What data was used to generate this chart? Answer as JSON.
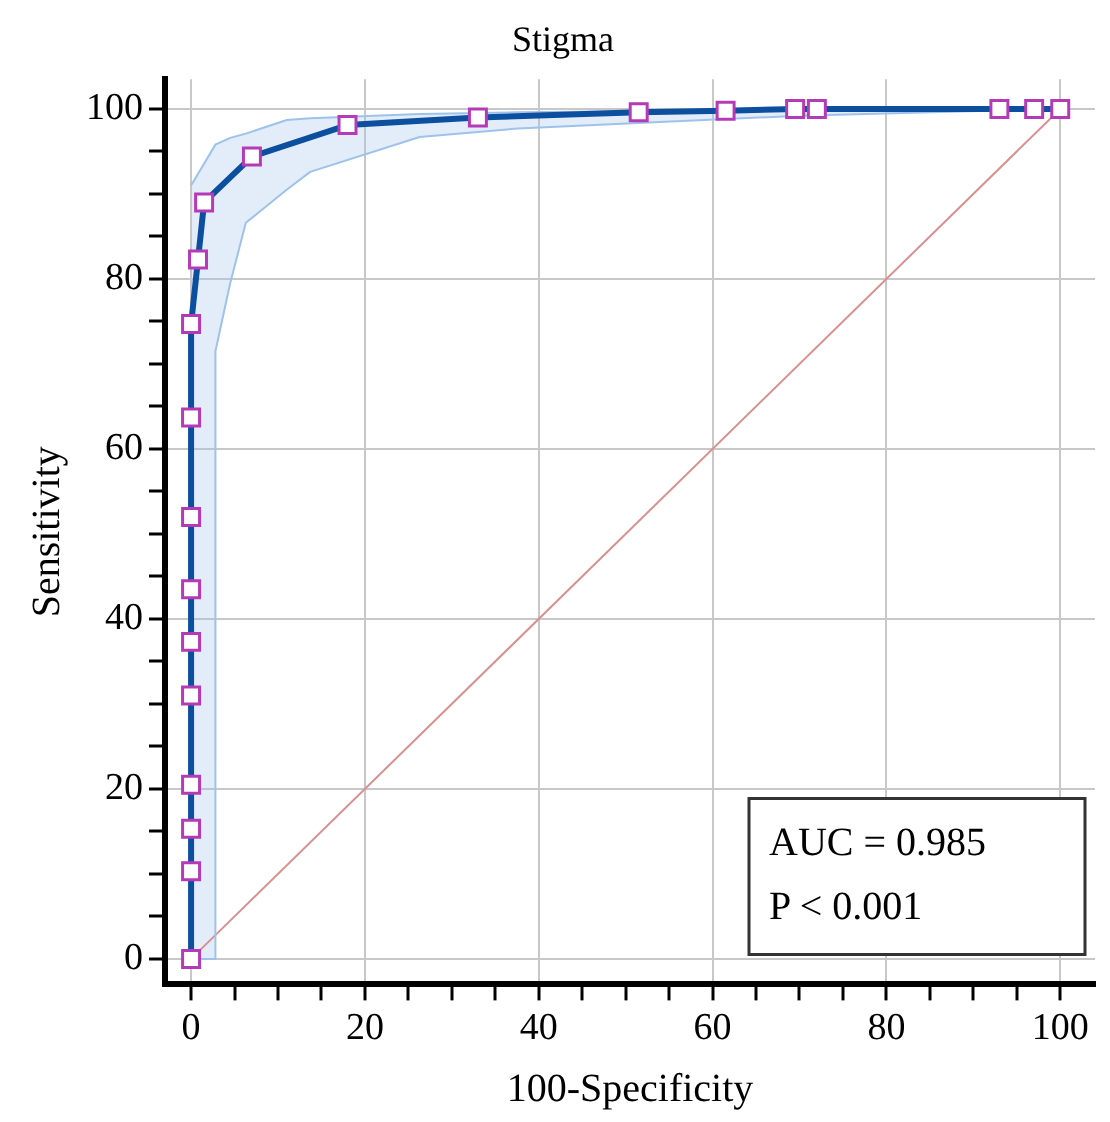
{
  "chart_data": {
    "type": "line",
    "title": "Stigma",
    "xlabel": "100-Specificity",
    "ylabel": "Sensitivity",
    "xlim": [
      -3,
      104
    ],
    "ylim": [
      -3,
      103.5
    ],
    "xticks": [
      0,
      {
        "value": 5,
        "label": null
      },
      {
        "value": 10,
        "label": null
      },
      {
        "value": 15,
        "label": null
      },
      20,
      {
        "value": 25,
        "label": null
      },
      {
        "value": 30,
        "label": null
      },
      {
        "value": 35,
        "label": null
      },
      40,
      {
        "value": 45,
        "label": null
      },
      {
        "value": 50,
        "label": null
      },
      {
        "value": 55,
        "label": null
      },
      60,
      {
        "value": 65,
        "label": null
      },
      {
        "value": 70,
        "label": null
      },
      {
        "value": 75,
        "label": null
      },
      80,
      {
        "value": 85,
        "label": null
      },
      {
        "value": 90,
        "label": null
      },
      {
        "value": 95,
        "label": null
      },
      100
    ],
    "yticks": [
      0,
      {
        "value": 5,
        "label": null
      },
      {
        "value": 10,
        "label": null
      },
      {
        "value": 15,
        "label": null
      },
      20,
      {
        "value": 25,
        "label": null
      },
      {
        "value": 30,
        "label": null
      },
      {
        "value": 35,
        "label": null
      },
      40,
      {
        "value": 45,
        "label": null
      },
      {
        "value": 50,
        "label": null
      },
      {
        "value": 55,
        "label": null
      },
      60,
      {
        "value": 65,
        "label": null
      },
      {
        "value": 70,
        "label": null
      },
      {
        "value": 75,
        "label": null
      },
      80,
      {
        "value": 85,
        "label": null
      },
      {
        "value": 90,
        "label": null
      },
      {
        "value": 95,
        "label": null
      },
      100
    ],
    "grid": true,
    "legend": false,
    "series": [
      {
        "color": "#9fc2ea",
        "x": [
          0,
          2.8,
          2.8,
          4.5,
          6.3,
          11,
          13.7,
          26.3,
          37.6,
          70,
          100
        ],
        "values": [
          91,
          95.8,
          95.8,
          96.6,
          97.1,
          98.7,
          98.9,
          99.4,
          99.6,
          99.9,
          100
        ],
        "lower": [
          0,
          0,
          71.5,
          79.5,
          86.6,
          90.5,
          92.6,
          96.7,
          97.7,
          99.2,
          100
        ],
        "upper": [
          91,
          95.8,
          95.8,
          96.6,
          97.1,
          98.7,
          98.9,
          99.4,
          99.6,
          99.9,
          100
        ]
      },
      {
        "color": "#9fc2ea",
        "x": [
          0,
          2.8,
          2.8,
          4.5,
          6.3,
          11,
          13.7,
          26.3,
          37.6,
          70,
          100
        ],
        "values": [
          0,
          0,
          71.5,
          79.5,
          86.6,
          90.5,
          92.6,
          96.7,
          97.7,
          99.2,
          100
        ]
      },
      {
        "color": "#d89090",
        "x": [
          0,
          100
        ],
        "values": [
          0,
          100
        ]
      },
      {
        "color": "#0b4f9e",
        "marker": "square",
        "line_style": "solid",
        "x": [
          0,
          0,
          0,
          0,
          0,
          0,
          0,
          0,
          0,
          0,
          0.8,
          1.5,
          7,
          18,
          33,
          51.5,
          61.5,
          69.5,
          72,
          93,
          97,
          100
        ],
        "values": [
          0,
          10.3,
          15.3,
          20.5,
          31,
          37.3,
          43.5,
          52,
          63.7,
          74.7,
          82.3,
          89,
          94.4,
          98.1,
          99,
          99.6,
          99.8,
          100,
          100,
          100,
          100,
          100
        ]
      }
    ],
    "annotations": [
      "AUC = 0.985",
      "P < 0.001"
    ]
  }
}
